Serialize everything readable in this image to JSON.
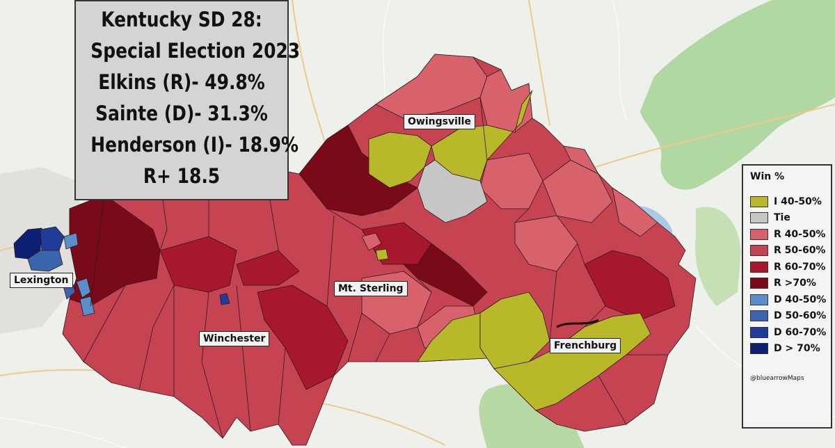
{
  "title_lines": [
    "Kentucky SD 28:",
    "Special Election 2023",
    "Elkins (R)- 49.8%",
    "Sainte (D)- 31.3%",
    "Henderson (I)- 18.9%",
    "R+ 18.5"
  ],
  "towns": {
    "owingsville": "Owingsville",
    "lexington": "Lexington",
    "mt_sterling": "Mt. Sterling",
    "winchester": "Winchester",
    "frenchburg": "Frenchburg"
  },
  "legend": {
    "title": "Win %",
    "items": [
      {
        "label": "I 40-50%",
        "color": "#b8b82a"
      },
      {
        "label": "Tie",
        "color": "#c6c6c6"
      },
      {
        "label": "R 40-50%",
        "color": "#d8626c"
      },
      {
        "label": "R 50-60%",
        "color": "#c64352"
      },
      {
        "label": "R 60-70%",
        "color": "#a8182c"
      },
      {
        "label": "R >70%",
        "color": "#7a0a18"
      },
      {
        "label": "D 40-50%",
        "color": "#5b8fcb"
      },
      {
        "label": "D 50-60%",
        "color": "#3c64ad"
      },
      {
        "label": "D 60-70%",
        "color": "#1f3d98"
      },
      {
        "label": "D > 70%",
        "color": "#0c1f72"
      }
    ],
    "credit": "@bluearrowMaps"
  },
  "colors": {
    "background": "#eef0ec",
    "forest": "#9ccf8a",
    "water": "#a9c9e6",
    "road": "#f0c98a"
  }
}
